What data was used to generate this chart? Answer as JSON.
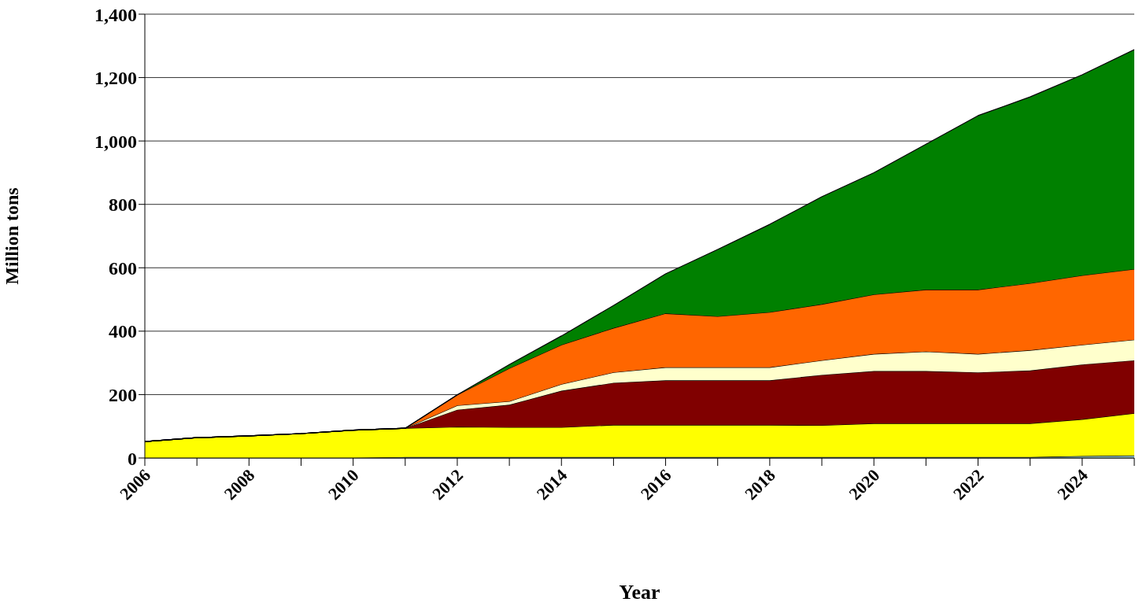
{
  "chart_data": {
    "type": "area",
    "stacked": true,
    "xlabel": "Year",
    "ylabel": "Million tons",
    "x": [
      2006,
      2007,
      2008,
      2009,
      2010,
      2011,
      2012,
      2013,
      2014,
      2015,
      2016,
      2017,
      2018,
      2019,
      2020,
      2021,
      2022,
      2023,
      2024,
      2025
    ],
    "series": [
      {
        "color": "#99cccc",
        "values": [
          0,
          0,
          0,
          0,
          0,
          3,
          3,
          3,
          3,
          3,
          3,
          3,
          3,
          3,
          3,
          3,
          3,
          3,
          6,
          8
        ]
      },
      {
        "color": "#ffff00",
        "values": [
          52,
          64,
          70,
          77,
          88,
          91,
          95,
          94,
          94,
          101,
          101,
          101,
          101,
          100,
          106,
          106,
          106,
          106,
          116,
          133
        ]
      },
      {
        "color": "#800000",
        "values": [
          0,
          0,
          0,
          0,
          0,
          0,
          54,
          71,
          115,
          133,
          141,
          141,
          141,
          159,
          165,
          165,
          161,
          167,
          173,
          167
        ]
      },
      {
        "color": "#ffffcc",
        "values": [
          0,
          0,
          0,
          0,
          0,
          0,
          14,
          11,
          21,
          33,
          41,
          41,
          41,
          46,
          54,
          62,
          58,
          64,
          62,
          65
        ]
      },
      {
        "color": "#ff6600",
        "values": [
          0,
          0,
          0,
          0,
          0,
          0,
          33,
          104,
          124,
          140,
          170,
          161,
          174,
          177,
          188,
          195,
          203,
          211,
          219,
          223
        ]
      },
      {
        "color": "#008000",
        "values": [
          0,
          0,
          0,
          0,
          0,
          0,
          0,
          12,
          28,
          71,
          125,
          211,
          277,
          339,
          384,
          459,
          549,
          588,
          633,
          692
        ]
      }
    ],
    "xlim": [
      2006,
      2025
    ],
    "xticks": [
      2006,
      {
        "value": 2007,
        "label": null
      },
      2008,
      {
        "value": 2009,
        "label": null
      },
      2010,
      {
        "value": 2011,
        "label": null
      },
      2012,
      {
        "value": 2013,
        "label": null
      },
      2014,
      {
        "value": 2015,
        "label": null
      },
      2016,
      {
        "value": 2017,
        "label": null
      },
      2018,
      {
        "value": 2019,
        "label": null
      },
      2020,
      {
        "value": 2021,
        "label": null
      },
      2022,
      {
        "value": 2023,
        "label": null
      },
      2024,
      {
        "value": 2025,
        "label": null
      }
    ],
    "ylim": [
      0,
      1400
    ],
    "yticks": [
      0,
      {
        "value": 200,
        "label": "200"
      },
      {
        "value": 400,
        "label": "400"
      },
      {
        "value": 600,
        "label": "600"
      },
      {
        "value": 800,
        "label": "800"
      },
      {
        "value": 1000,
        "label": "1,000"
      },
      {
        "value": 1200,
        "label": "1,200"
      },
      {
        "value": 1400,
        "label": "1,400"
      }
    ],
    "grid": "y",
    "legend": false
  }
}
